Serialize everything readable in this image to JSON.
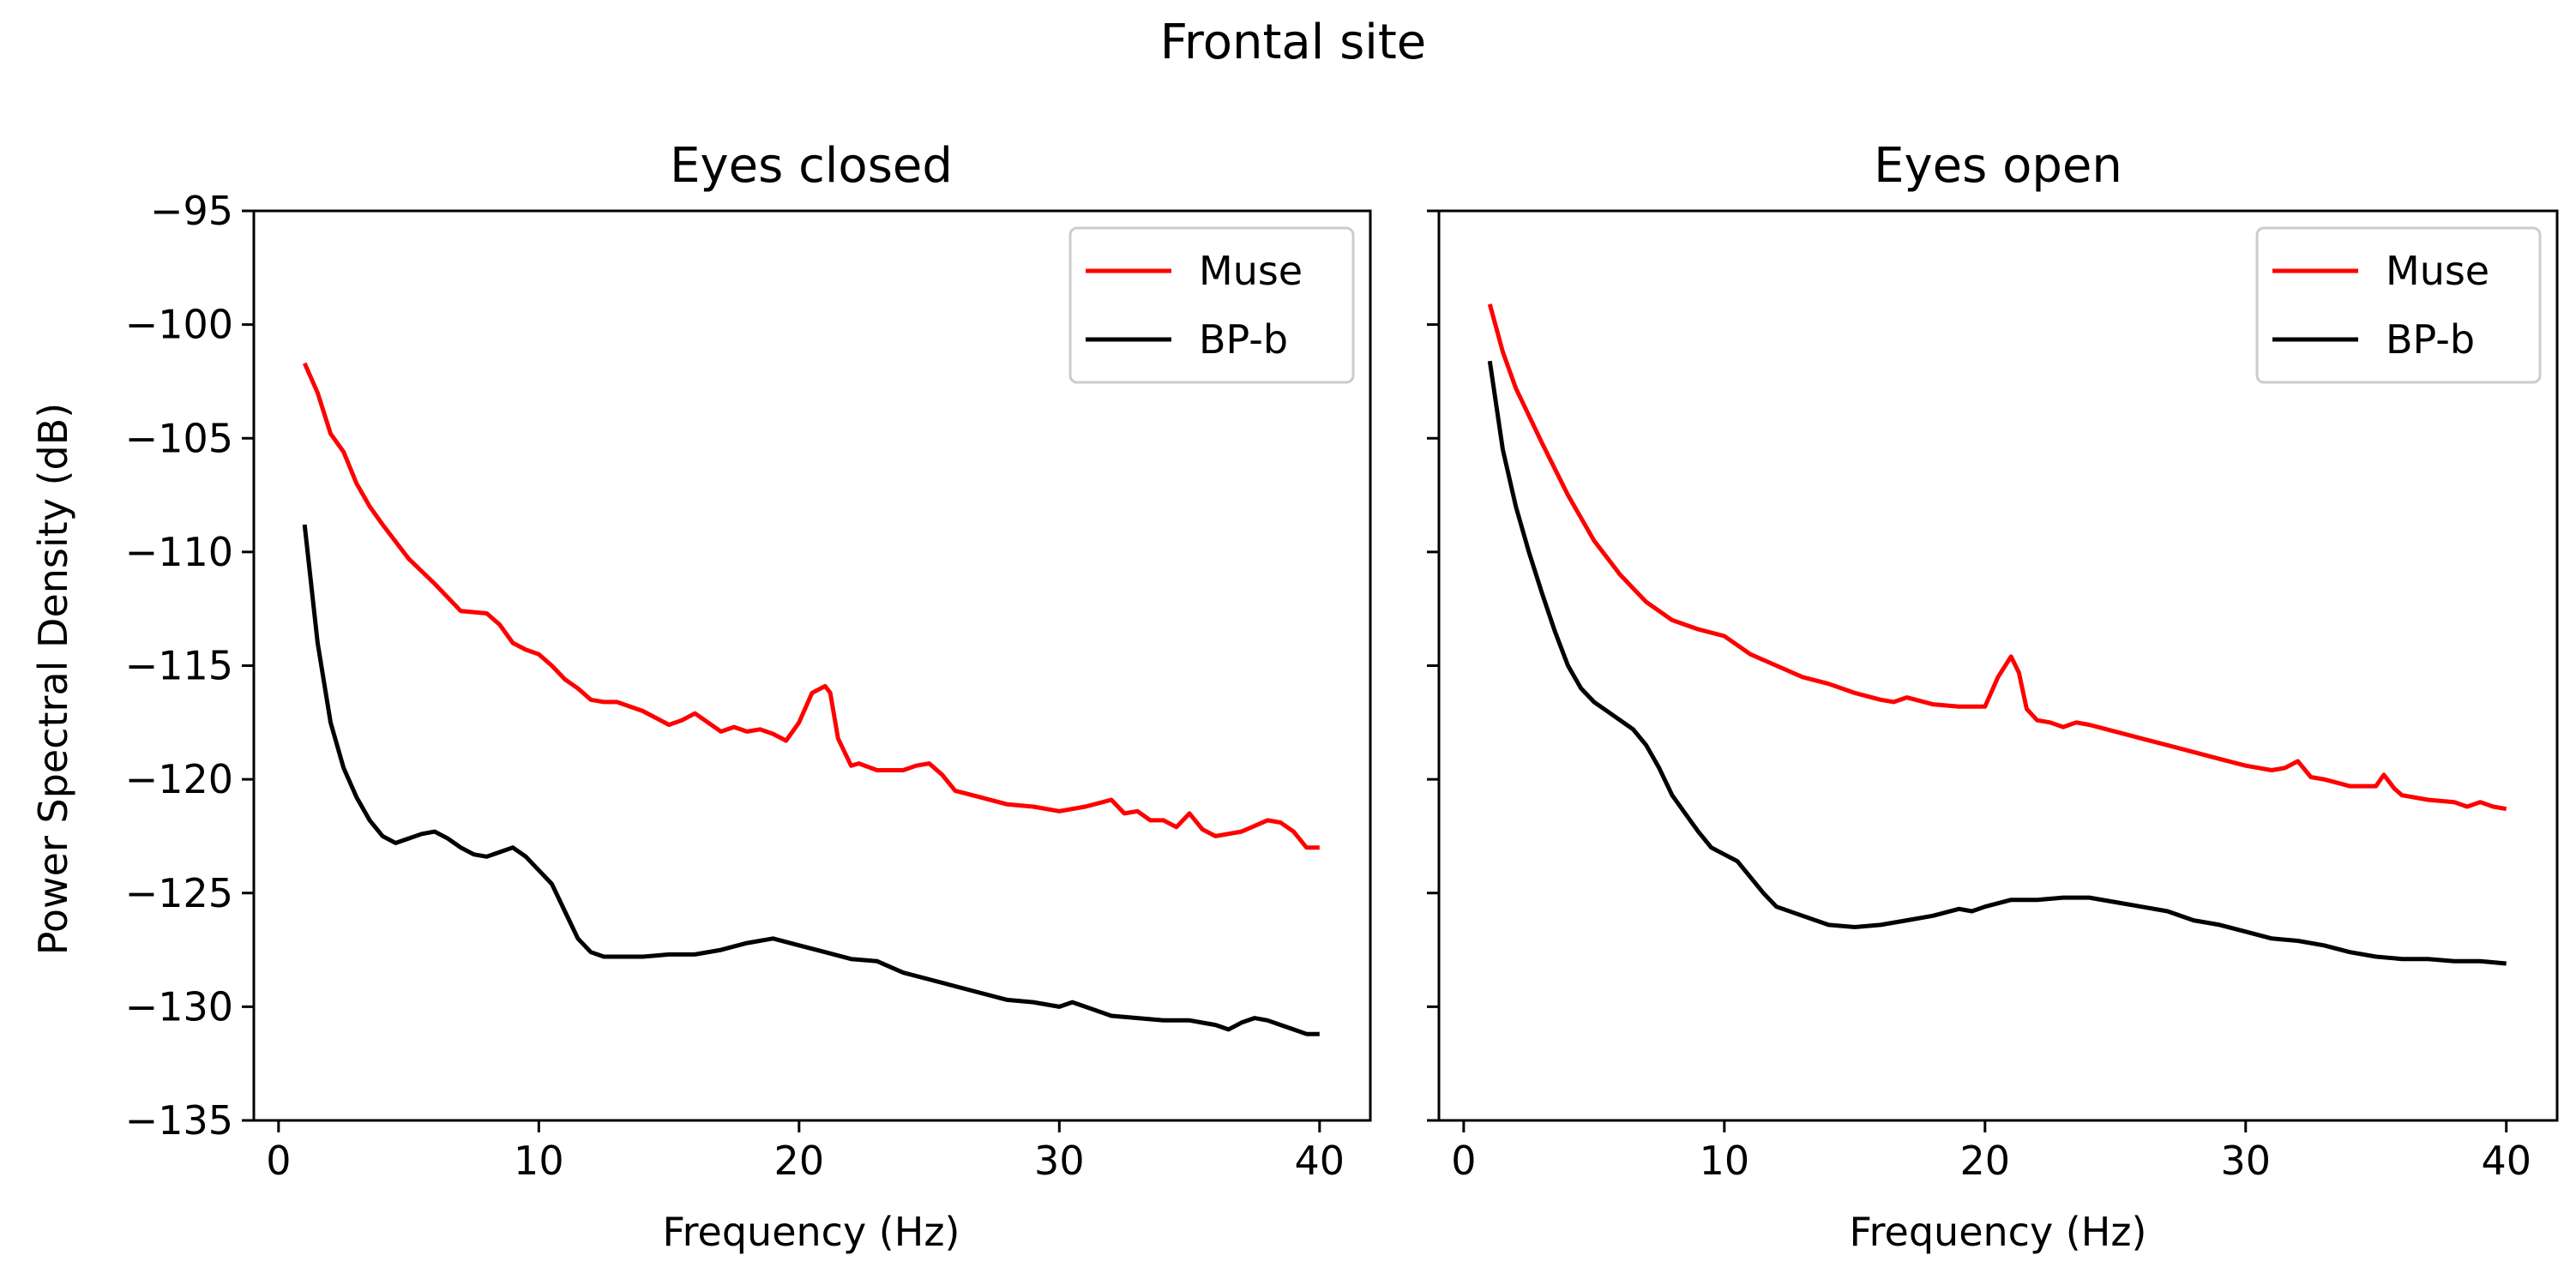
{
  "figure_title": "Frontal site",
  "colors": {
    "muse": "#ff0000",
    "bpb": "#000000",
    "axis": "#000000",
    "legend_border": "#cccccc"
  },
  "chart_data": [
    {
      "type": "line",
      "title": "Eyes closed",
      "xlabel": "Frequency (Hz)",
      "ylabel": "Power Spectral Density (dB)",
      "xlim": [
        -0.95,
        41.95
      ],
      "ylim": [
        -135,
        -95
      ],
      "xticks": [
        0,
        10,
        20,
        30,
        40
      ],
      "yticks": [
        -95,
        -100,
        -105,
        -110,
        -115,
        -120,
        -125,
        -130,
        -135
      ],
      "legend_position": "top-right",
      "series": [
        {
          "name": "Muse",
          "color": "#ff0000",
          "x": [
            1,
            1.5,
            2,
            2.5,
            3,
            3.5,
            4,
            5,
            6,
            7,
            8,
            8.5,
            9,
            9.5,
            10,
            10.5,
            11,
            11.5,
            12,
            12.5,
            13,
            14,
            15,
            15.5,
            16,
            16.5,
            17,
            17.5,
            18,
            18.5,
            19,
            19.5,
            20,
            20.5,
            21,
            21.2,
            21.5,
            22,
            22.3,
            23,
            24,
            24.5,
            25,
            25.5,
            26,
            27,
            28,
            29,
            30,
            31,
            32,
            32.5,
            33,
            33.5,
            34,
            34.5,
            35,
            35.5,
            36,
            37,
            38,
            38.5,
            39,
            39.5,
            40
          ],
          "y": [
            -101.7,
            -103.0,
            -104.8,
            -105.6,
            -107.0,
            -108.0,
            -108.8,
            -110.3,
            -111.4,
            -112.6,
            -112.7,
            -113.2,
            -114.0,
            -114.3,
            -114.5,
            -115.0,
            -115.6,
            -116.0,
            -116.5,
            -116.6,
            -116.6,
            -117.0,
            -117.6,
            -117.4,
            -117.1,
            -117.5,
            -117.9,
            -117.7,
            -117.9,
            -117.8,
            -118.0,
            -118.3,
            -117.5,
            -116.2,
            -115.9,
            -116.2,
            -118.2,
            -119.4,
            -119.3,
            -119.6,
            -119.6,
            -119.4,
            -119.3,
            -119.8,
            -120.5,
            -120.8,
            -121.1,
            -121.2,
            -121.4,
            -121.2,
            -120.9,
            -121.5,
            -121.4,
            -121.8,
            -121.8,
            -122.1,
            -121.5,
            -122.2,
            -122.5,
            -122.3,
            -121.8,
            -121.9,
            -122.3,
            -123.0,
            -123.0
          ]
        },
        {
          "name": "BP-b",
          "color": "#000000",
          "x": [
            1,
            1.5,
            2,
            2.5,
            3,
            3.5,
            4,
            4.5,
            5,
            5.5,
            6,
            6.5,
            7,
            7.5,
            8,
            8.5,
            9,
            9.5,
            10,
            10.5,
            11,
            11.5,
            12,
            12.5,
            13,
            14,
            15,
            16,
            17,
            18,
            19,
            20,
            21,
            22,
            23,
            24,
            25,
            26,
            27,
            28,
            29,
            30,
            30.5,
            31,
            32,
            33,
            34,
            35,
            36,
            36.5,
            37,
            37.5,
            38,
            38.5,
            39,
            39.5,
            40
          ],
          "y": [
            -108.8,
            -114.0,
            -117.5,
            -119.5,
            -120.8,
            -121.8,
            -122.5,
            -122.8,
            -122.6,
            -122.4,
            -122.3,
            -122.6,
            -123.0,
            -123.3,
            -123.4,
            -123.2,
            -123.0,
            -123.4,
            -124.0,
            -124.6,
            -125.8,
            -127.0,
            -127.6,
            -127.8,
            -127.8,
            -127.8,
            -127.7,
            -127.7,
            -127.5,
            -127.2,
            -127.0,
            -127.3,
            -127.6,
            -127.9,
            -128.0,
            -128.5,
            -128.8,
            -129.1,
            -129.4,
            -129.7,
            -129.8,
            -130.0,
            -129.8,
            -130.0,
            -130.4,
            -130.5,
            -130.6,
            -130.6,
            -130.8,
            -131.0,
            -130.7,
            -130.5,
            -130.6,
            -130.8,
            -131.0,
            -131.2,
            -131.2
          ]
        }
      ]
    },
    {
      "type": "line",
      "title": "Eyes open",
      "xlabel": "Frequency (Hz)",
      "ylabel": "",
      "xlim": [
        -0.95,
        41.95
      ],
      "ylim": [
        -135,
        -95
      ],
      "xticks": [
        0,
        10,
        20,
        30,
        40
      ],
      "yticks": [
        -95,
        -100,
        -105,
        -110,
        -115,
        -120,
        -125,
        -130,
        -135
      ],
      "legend_position": "top-right",
      "series": [
        {
          "name": "Muse",
          "color": "#ff0000",
          "x": [
            1,
            1.5,
            2,
            2.5,
            3,
            4,
            5,
            6,
            7,
            8,
            9,
            10,
            11,
            12,
            13,
            14,
            15,
            16,
            16.5,
            17,
            18,
            19,
            20,
            20.5,
            21,
            21.3,
            21.6,
            22,
            22.5,
            23,
            23.5,
            24,
            25,
            26,
            27,
            28,
            29,
            30,
            31,
            31.5,
            32,
            32.5,
            33,
            34,
            35,
            35.3,
            35.7,
            36,
            37,
            38,
            38.5,
            39,
            39.5,
            40
          ],
          "y": [
            -99.1,
            -101.2,
            -102.8,
            -104.0,
            -105.2,
            -107.5,
            -109.5,
            -111.0,
            -112.2,
            -113.0,
            -113.4,
            -113.7,
            -114.5,
            -115.0,
            -115.5,
            -115.8,
            -116.2,
            -116.5,
            -116.6,
            -116.4,
            -116.7,
            -116.8,
            -116.8,
            -115.5,
            -114.6,
            -115.3,
            -116.9,
            -117.4,
            -117.5,
            -117.7,
            -117.5,
            -117.6,
            -117.9,
            -118.2,
            -118.5,
            -118.8,
            -119.1,
            -119.4,
            -119.6,
            -119.5,
            -119.2,
            -119.9,
            -120.0,
            -120.3,
            -120.3,
            -119.8,
            -120.4,
            -120.7,
            -120.9,
            -121.0,
            -121.2,
            -121.0,
            -121.2,
            -121.3
          ]
        },
        {
          "name": "BP-b",
          "color": "#000000",
          "x": [
            1,
            1.5,
            2,
            2.5,
            3,
            3.5,
            4,
            4.5,
            5,
            5.5,
            6,
            6.5,
            7,
            7.5,
            8,
            8.5,
            9,
            9.5,
            10,
            10.5,
            11,
            11.5,
            12,
            13,
            14,
            15,
            16,
            17,
            18,
            19,
            19.5,
            20,
            21,
            22,
            23,
            24,
            25,
            26,
            27,
            28,
            29,
            30,
            31,
            32,
            33,
            34,
            35,
            36,
            37,
            38,
            39,
            40
          ],
          "y": [
            -101.6,
            -105.5,
            -108.0,
            -110.0,
            -111.8,
            -113.5,
            -115.0,
            -116.0,
            -116.6,
            -117.0,
            -117.4,
            -117.8,
            -118.5,
            -119.5,
            -120.7,
            -121.5,
            -122.3,
            -123.0,
            -123.3,
            -123.6,
            -124.3,
            -125.0,
            -125.6,
            -126.0,
            -126.4,
            -126.5,
            -126.4,
            -126.2,
            -126.0,
            -125.7,
            -125.8,
            -125.6,
            -125.3,
            -125.3,
            -125.2,
            -125.2,
            -125.4,
            -125.6,
            -125.8,
            -126.2,
            -126.4,
            -126.7,
            -127.0,
            -127.1,
            -127.3,
            -127.6,
            -127.8,
            -127.9,
            -127.9,
            -128.0,
            -128.0,
            -128.1
          ]
        }
      ]
    }
  ]
}
